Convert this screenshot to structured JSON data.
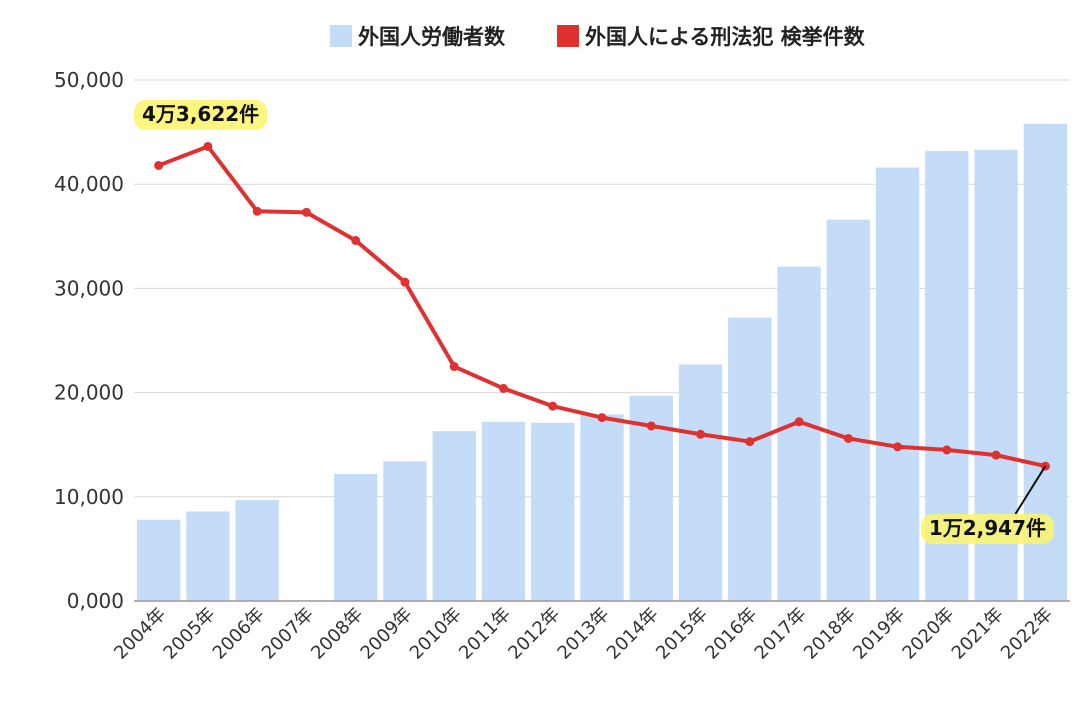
{
  "chart_data": {
    "type": "bar",
    "legend": {
      "placement": "top",
      "entries": [
        {
          "label": "外国人労働者数",
          "color": "#c4dcf7",
          "kind": "bar"
        },
        {
          "label": "外国人による刑法犯 検挙件数",
          "color": "#e03131",
          "kind": "line"
        }
      ]
    },
    "categories": [
      "2004年",
      "2005年",
      "2006年",
      "2007年",
      "2008年",
      "2009年",
      "2010年",
      "2011年",
      "2012年",
      "2013年",
      "2014年",
      "2015年",
      "2016年",
      "2017年",
      "2018年",
      "2019年",
      "2020年",
      "2021年",
      "2022年"
    ],
    "series": [
      {
        "name": "外国人労働者数",
        "type": "bar",
        "color": "#c4dcf7",
        "values": [
          7800,
          8600,
          9700,
          null,
          12200,
          13400,
          16300,
          17200,
          17100,
          17900,
          19700,
          22700,
          27200,
          32100,
          36600,
          41600,
          43200,
          43300,
          45800
        ]
      },
      {
        "name": "外国人による刑法犯 検挙件数",
        "type": "line",
        "color": "#e03131",
        "values": [
          41800,
          43622,
          37400,
          37300,
          34600,
          30600,
          22500,
          20400,
          18700,
          17600,
          16800,
          16000,
          15300,
          17200,
          15600,
          14800,
          14500,
          14000,
          12947
        ]
      }
    ],
    "yticks": [
      "0,000",
      "10,000",
      "20,000",
      "30,000",
      "40,000",
      "50,000"
    ],
    "ylim": [
      0,
      50000
    ],
    "grid": true,
    "annotations": [
      {
        "text": "4万3,622件",
        "category": "2005年"
      },
      {
        "text": "1万2,947件",
        "category": "2022年"
      }
    ]
  }
}
